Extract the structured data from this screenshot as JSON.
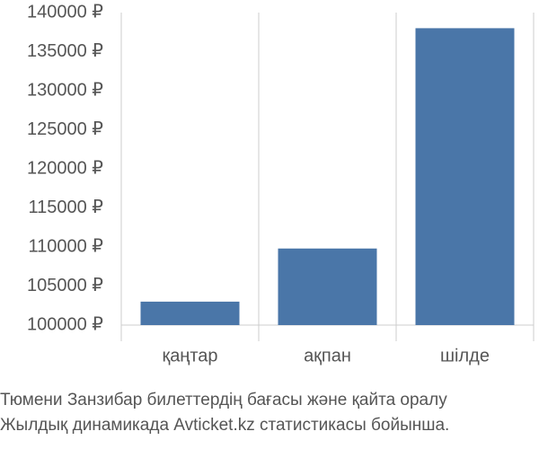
{
  "chart_data": {
    "type": "bar",
    "categories": [
      "қаңтар",
      "ақпан",
      "шілде"
    ],
    "values": [
      103000,
      109800,
      138000
    ],
    "color": "#4a76a8",
    "ylim": [
      100000,
      140000
    ],
    "yticks": [
      {
        "value": 100000,
        "label": "100000 ₽"
      },
      {
        "value": 105000,
        "label": "105000 ₽"
      },
      {
        "value": 110000,
        "label": "110000 ₽"
      },
      {
        "value": 115000,
        "label": "115000 ₽"
      },
      {
        "value": 120000,
        "label": "120000 ₽"
      },
      {
        "value": 125000,
        "label": "125000 ₽"
      },
      {
        "value": 130000,
        "label": "130000 ₽"
      },
      {
        "value": 135000,
        "label": "135000 ₽"
      },
      {
        "value": 140000,
        "label": "140000 ₽"
      }
    ],
    "caption": [
      "Тюмени Занзибар билеттердің бағасы және қайта оралу",
      "Жылдық динамикада Avticket.kz статистикасы бойынша."
    ]
  }
}
